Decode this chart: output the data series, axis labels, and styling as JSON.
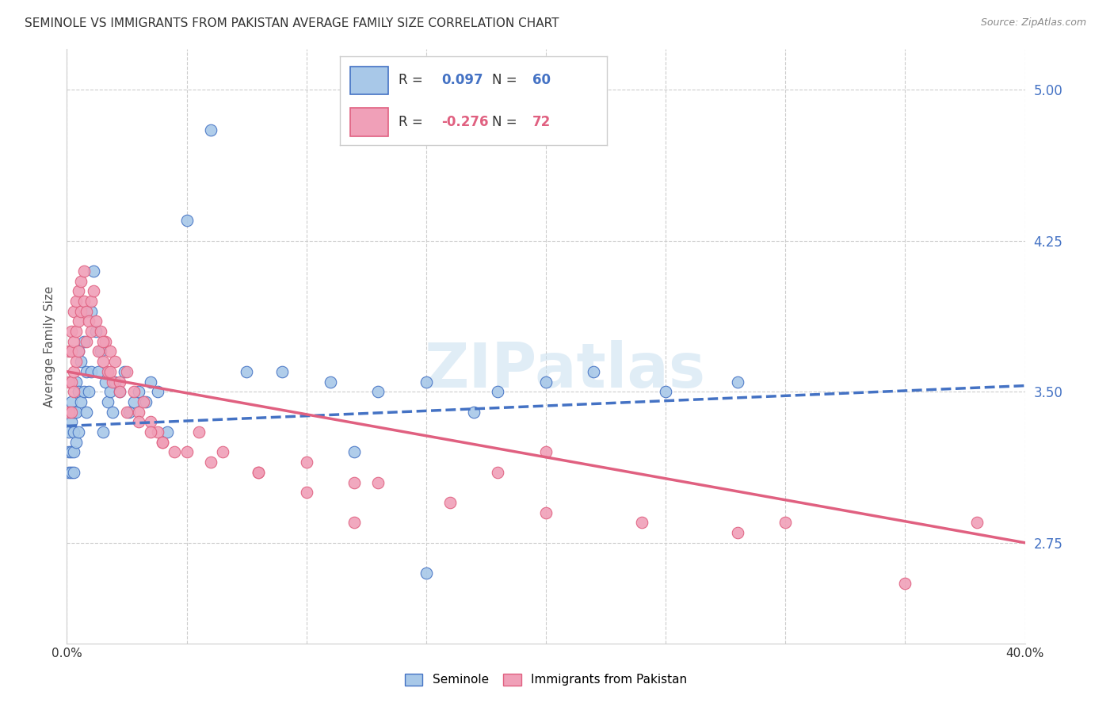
{
  "title": "SEMINOLE VS IMMIGRANTS FROM PAKISTAN AVERAGE FAMILY SIZE CORRELATION CHART",
  "source": "Source: ZipAtlas.com",
  "ylabel": "Average Family Size",
  "yticks": [
    2.75,
    3.5,
    4.25,
    5.0
  ],
  "xlim": [
    0.0,
    0.4
  ],
  "ylim": [
    2.25,
    5.2
  ],
  "seminole_R": 0.097,
  "seminole_N": 60,
  "pakistan_R": -0.276,
  "pakistan_N": 72,
  "seminole_color": "#a8c8e8",
  "pakistan_color": "#f0a0b8",
  "seminole_line_color": "#4472c4",
  "pakistan_line_color": "#e06080",
  "watermark": "ZIPatlas",
  "seminole_x": [
    0.001,
    0.001,
    0.001,
    0.002,
    0.002,
    0.002,
    0.002,
    0.003,
    0.003,
    0.003,
    0.003,
    0.004,
    0.004,
    0.004,
    0.005,
    0.005,
    0.005,
    0.006,
    0.006,
    0.007,
    0.007,
    0.008,
    0.008,
    0.009,
    0.01,
    0.01,
    0.011,
    0.012,
    0.013,
    0.014,
    0.015,
    0.016,
    0.017,
    0.018,
    0.019,
    0.02,
    0.022,
    0.024,
    0.026,
    0.028,
    0.03,
    0.033,
    0.035,
    0.038,
    0.042,
    0.05,
    0.06,
    0.075,
    0.09,
    0.11,
    0.13,
    0.15,
    0.18,
    0.2,
    0.22,
    0.17,
    0.25,
    0.28,
    0.15,
    0.12
  ],
  "seminole_y": [
    3.3,
    3.2,
    3.1,
    3.45,
    3.35,
    3.2,
    3.1,
    3.4,
    3.3,
    3.2,
    3.1,
    3.55,
    3.4,
    3.25,
    3.7,
    3.5,
    3.3,
    3.65,
    3.45,
    3.75,
    3.5,
    3.6,
    3.4,
    3.5,
    3.9,
    3.6,
    4.1,
    3.8,
    3.6,
    3.7,
    3.3,
    3.55,
    3.45,
    3.5,
    3.4,
    3.55,
    3.5,
    3.6,
    3.4,
    3.45,
    3.5,
    3.45,
    3.55,
    3.5,
    3.3,
    4.35,
    4.8,
    3.6,
    3.6,
    3.55,
    3.5,
    3.55,
    3.5,
    3.55,
    3.6,
    3.4,
    3.5,
    3.55,
    2.6,
    3.2
  ],
  "pakistan_x": [
    0.001,
    0.001,
    0.001,
    0.002,
    0.002,
    0.002,
    0.002,
    0.003,
    0.003,
    0.003,
    0.003,
    0.004,
    0.004,
    0.004,
    0.005,
    0.005,
    0.005,
    0.006,
    0.006,
    0.007,
    0.007,
    0.008,
    0.008,
    0.009,
    0.01,
    0.01,
    0.011,
    0.012,
    0.013,
    0.014,
    0.015,
    0.016,
    0.017,
    0.018,
    0.019,
    0.02,
    0.022,
    0.025,
    0.028,
    0.03,
    0.032,
    0.035,
    0.038,
    0.04,
    0.045,
    0.055,
    0.065,
    0.08,
    0.1,
    0.12,
    0.015,
    0.018,
    0.022,
    0.025,
    0.03,
    0.035,
    0.04,
    0.05,
    0.06,
    0.08,
    0.1,
    0.13,
    0.16,
    0.2,
    0.24,
    0.28,
    0.2,
    0.3,
    0.35,
    0.38,
    0.18,
    0.12
  ],
  "pakistan_y": [
    3.7,
    3.55,
    3.4,
    3.8,
    3.7,
    3.55,
    3.4,
    3.9,
    3.75,
    3.6,
    3.5,
    3.95,
    3.8,
    3.65,
    4.0,
    3.85,
    3.7,
    4.05,
    3.9,
    4.1,
    3.95,
    3.9,
    3.75,
    3.85,
    3.95,
    3.8,
    4.0,
    3.85,
    3.7,
    3.8,
    3.65,
    3.75,
    3.6,
    3.7,
    3.55,
    3.65,
    3.55,
    3.6,
    3.5,
    3.4,
    3.45,
    3.35,
    3.3,
    3.25,
    3.2,
    3.3,
    3.2,
    3.1,
    3.15,
    3.05,
    3.75,
    3.6,
    3.5,
    3.4,
    3.35,
    3.3,
    3.25,
    3.2,
    3.15,
    3.1,
    3.0,
    3.05,
    2.95,
    2.9,
    2.85,
    2.8,
    3.2,
    2.85,
    2.55,
    2.85,
    3.1,
    2.85
  ]
}
